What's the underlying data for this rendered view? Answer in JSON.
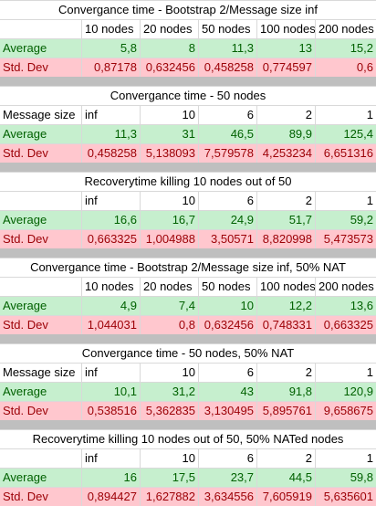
{
  "tables": [
    {
      "title": "Convergance time - Bootstrap 2/Message size inf",
      "header_label": "",
      "headers": [
        "10 nodes",
        "20 nodes",
        "50 nodes",
        "100 nodes",
        "200 nodes"
      ],
      "header_align": [
        "left",
        "left",
        "left",
        "left",
        "left"
      ],
      "average_label": "Average",
      "average": [
        "5,8",
        "8",
        "11,3",
        "13",
        "15,2"
      ],
      "std_label": "Std. Dev",
      "std": [
        "0,87178",
        "0,632456",
        "0,458258",
        "0,774597",
        "0,6"
      ]
    },
    {
      "title": "Convergance time - 50 nodes",
      "header_label": "Message size",
      "headers": [
        "inf",
        "10",
        "6",
        "2",
        "1"
      ],
      "header_align": [
        "left",
        "right",
        "right",
        "right",
        "right"
      ],
      "average_label": "Average",
      "average": [
        "11,3",
        "31",
        "46,5",
        "89,9",
        "125,4"
      ],
      "std_label": "Std. Dev",
      "std": [
        "0,458258",
        "5,138093",
        "7,579578",
        "4,253234",
        "6,651316"
      ]
    },
    {
      "title": "Recoverytime killing 10 nodes out of 50",
      "header_label": "",
      "headers": [
        "inf",
        "10",
        "6",
        "2",
        "1"
      ],
      "header_align": [
        "left",
        "right",
        "right",
        "right",
        "right"
      ],
      "average_label": "Average",
      "average": [
        "16,6",
        "16,7",
        "24,9",
        "51,7",
        "59,2"
      ],
      "std_label": "Std. Dev",
      "std": [
        "0,663325",
        "1,004988",
        "3,50571",
        "8,820998",
        "5,473573"
      ]
    },
    {
      "title": "Convergance time - Bootstrap 2/Message size inf, 50% NAT",
      "header_label": "",
      "headers": [
        "10 nodes",
        "20 nodes",
        "50 nodes",
        "100 nodes",
        "200 nodes"
      ],
      "header_align": [
        "left",
        "left",
        "left",
        "left",
        "left"
      ],
      "average_label": "Average",
      "average": [
        "4,9",
        "7,4",
        "10",
        "12,2",
        "13,6"
      ],
      "std_label": "Std. Dev",
      "std": [
        "1,044031",
        "0,8",
        "0,632456",
        "0,748331",
        "0,663325"
      ]
    },
    {
      "title": "Convergance time - 50 nodes, 50% NAT",
      "header_label": "Message size",
      "headers": [
        "inf",
        "10",
        "6",
        "2",
        "1"
      ],
      "header_align": [
        "left",
        "right",
        "right",
        "right",
        "right"
      ],
      "average_label": "Average",
      "average": [
        "10,1",
        "31,2",
        "43",
        "91,8",
        "120,9"
      ],
      "std_label": "Std. Dev",
      "std": [
        "0,538516",
        "5,362835",
        "3,130495",
        "5,895761",
        "9,658675"
      ]
    },
    {
      "title": "Recoverytime killing 10 nodes out of 50, 50% NATed nodes",
      "header_label": "",
      "headers": [
        "inf",
        "10",
        "6",
        "2",
        "1"
      ],
      "header_align": [
        "left",
        "right",
        "right",
        "right",
        "right"
      ],
      "average_label": "Average",
      "average": [
        "16",
        "17,5",
        "23,7",
        "44,5",
        "59,8"
      ],
      "std_label": "Std. Dev",
      "std": [
        "0,894427",
        "1,627882",
        "3,634556",
        "7,605919",
        "5,635601"
      ]
    }
  ]
}
